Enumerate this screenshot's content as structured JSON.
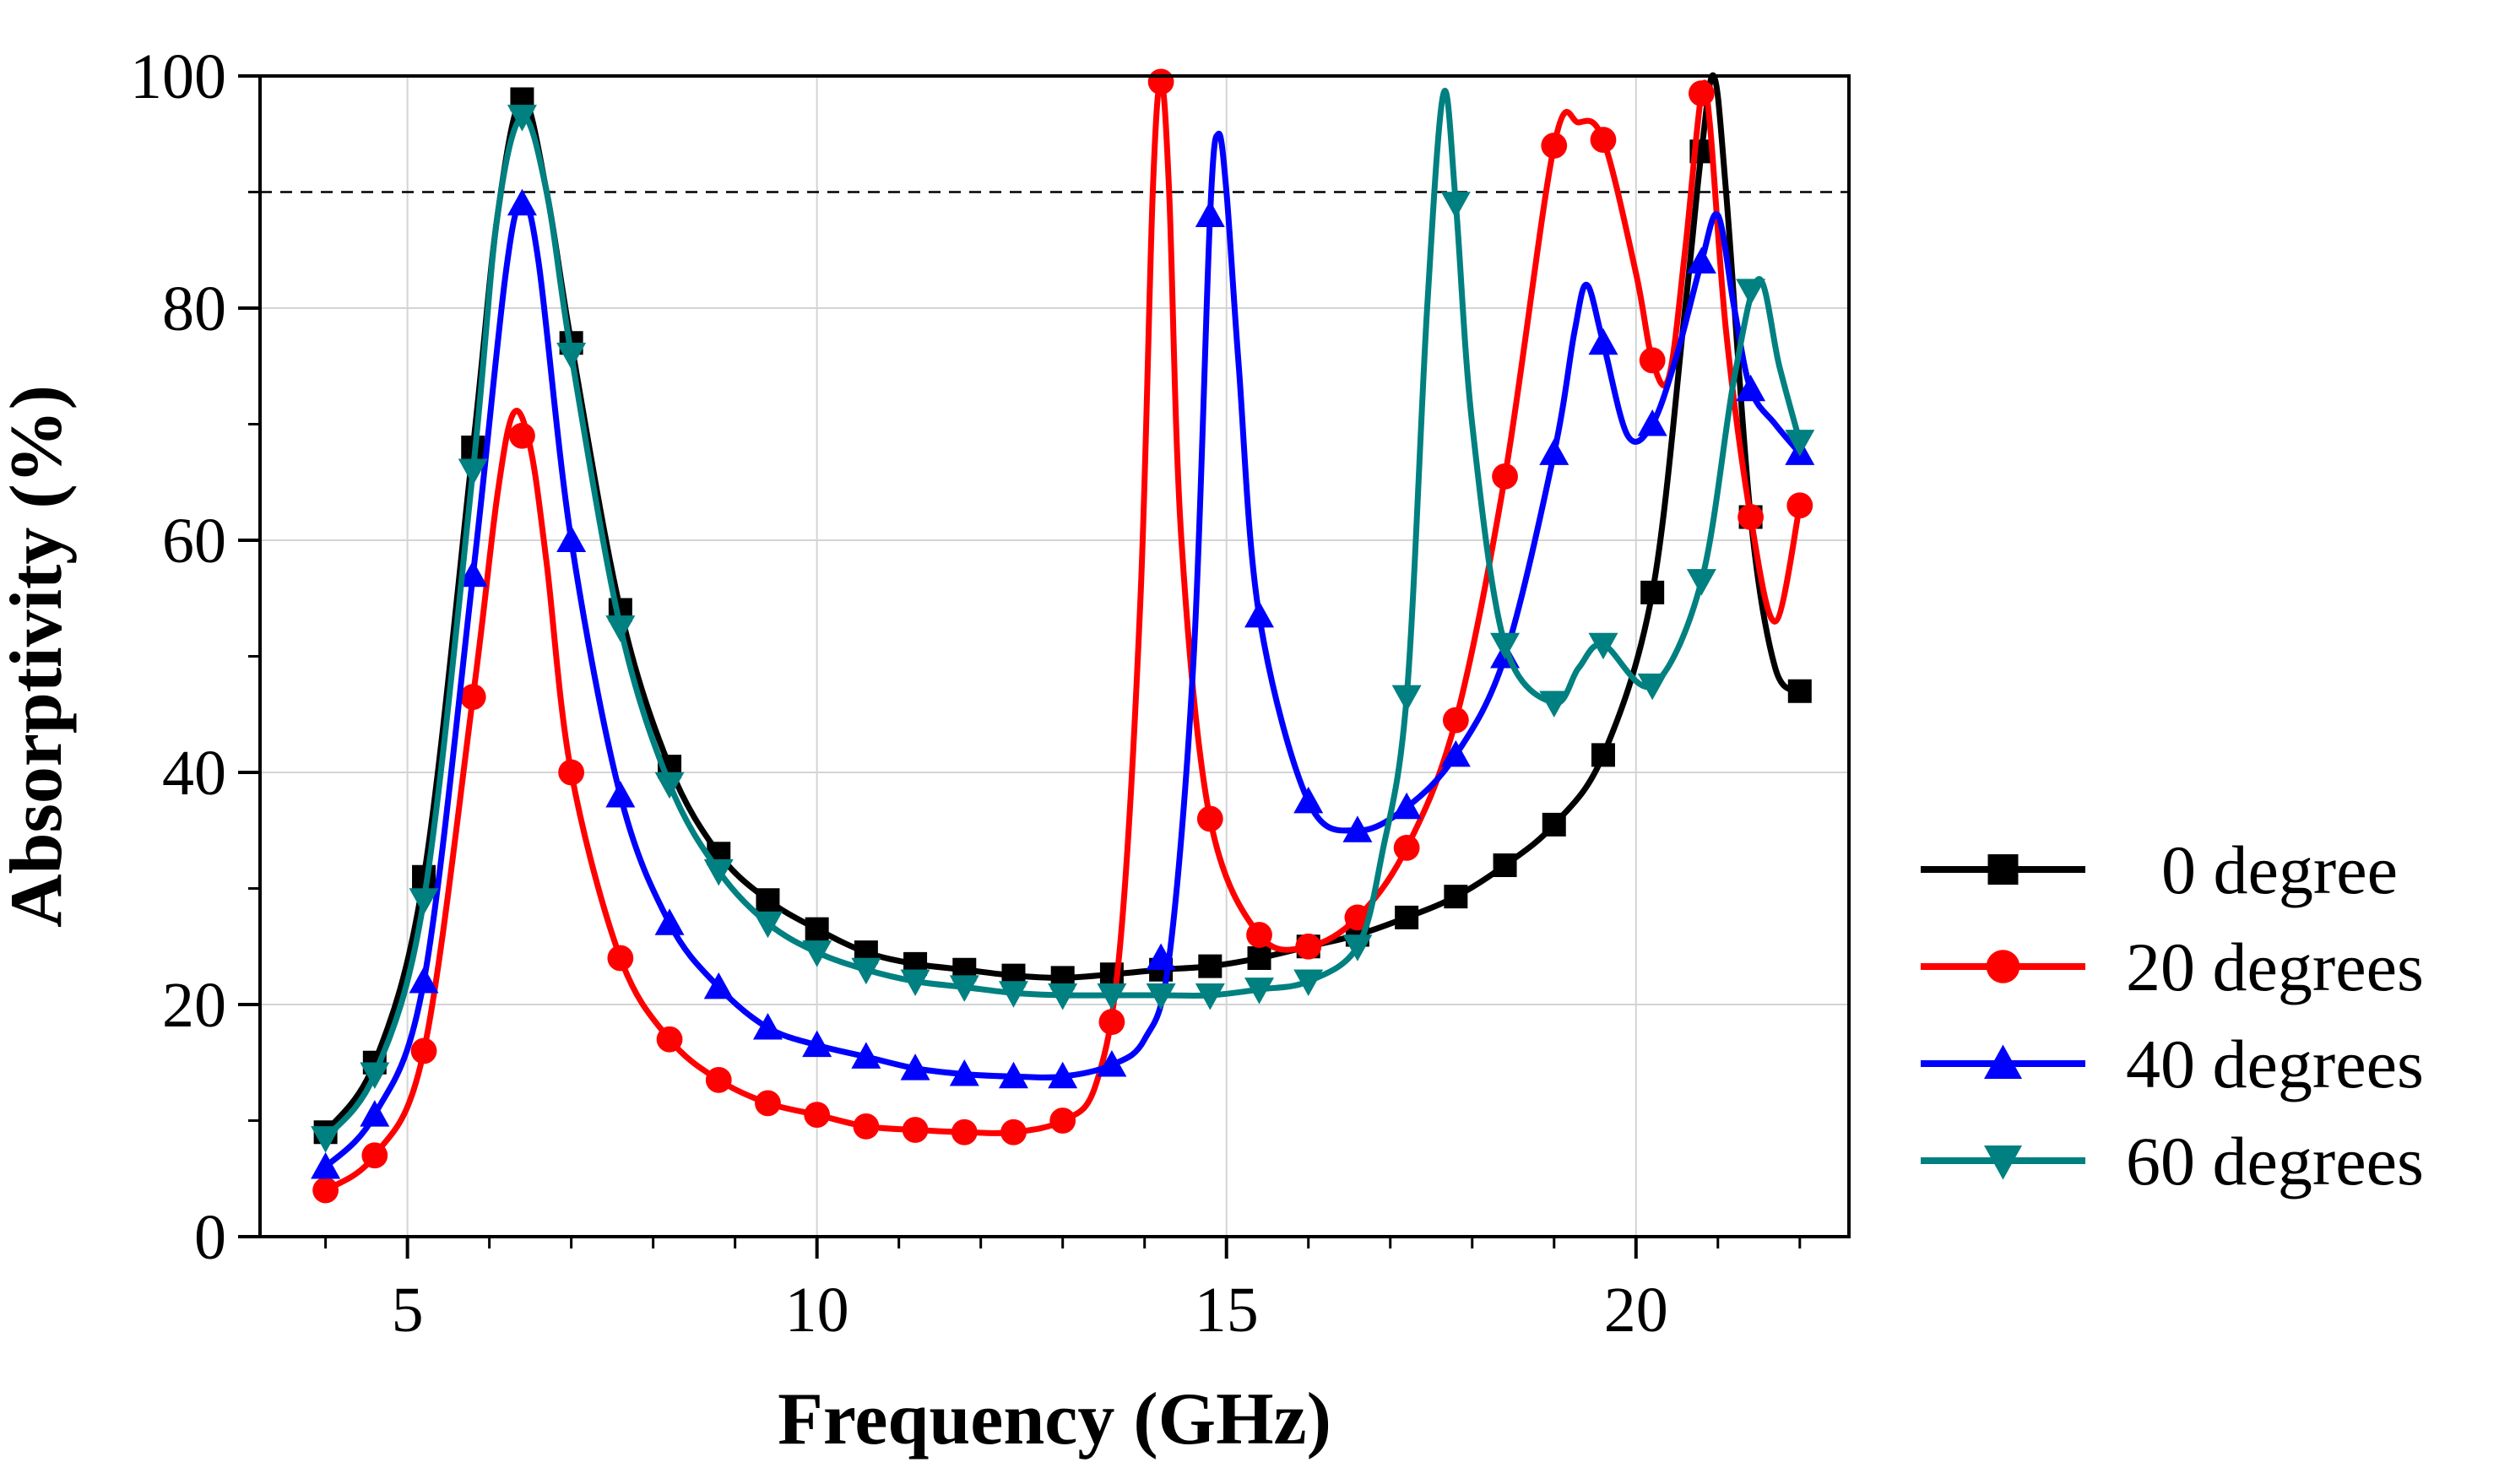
{
  "chart_data": {
    "type": "line",
    "title": "",
    "xlabel": "Frequency (GHz)",
    "ylabel": "Absorptivity (%)",
    "xlim": [
      3.2,
      22.6
    ],
    "ylim": [
      0,
      100
    ],
    "xticks": [
      5,
      10,
      15,
      20
    ],
    "yticks": [
      0,
      20,
      40,
      60,
      80,
      100
    ],
    "xtick_labels": [
      "5",
      "10",
      "15",
      "20"
    ],
    "ytick_labels": [
      "0",
      "20",
      "40",
      "60",
      "80",
      "100"
    ],
    "grid": true,
    "reference_line": {
      "y": 90,
      "style": "dashed",
      "color": "#000000"
    },
    "legend_position": "right",
    "series": [
      {
        "name": "0 degree",
        "color": "#000000",
        "marker": "square",
        "marker_x": [
          4.0,
          4.6,
          5.2,
          5.8,
          6.4,
          7.0,
          7.6,
          8.2,
          8.8,
          9.4,
          10.0,
          10.6,
          11.2,
          11.8,
          12.4,
          13.0,
          13.6,
          14.2,
          14.8,
          15.4,
          16.0,
          16.6,
          17.2,
          17.8,
          18.4,
          19.0,
          19.6,
          20.2,
          20.8,
          21.4,
          22.0
        ],
        "marker_y": [
          9,
          15,
          31,
          68,
          98,
          77,
          54,
          40.5,
          33,
          29,
          26.5,
          24.5,
          23.5,
          23,
          22.5,
          22.3,
          22.6,
          23,
          23.3,
          24,
          25,
          26,
          27.5,
          29.3,
          32,
          35.5,
          41.5,
          55.5,
          93.5,
          62,
          47
        ],
        "curve_x": [
          4.0,
          4.6,
          5.2,
          5.8,
          6.1,
          6.4,
          6.7,
          7.0,
          7.6,
          8.2,
          8.8,
          9.4,
          10.0,
          10.6,
          11.2,
          11.8,
          12.4,
          13.0,
          13.6,
          14.2,
          14.8,
          15.4,
          16.0,
          16.6,
          17.2,
          17.8,
          18.4,
          19.0,
          19.6,
          20.2,
          20.6,
          20.8,
          20.95,
          21.1,
          21.4,
          21.7,
          22.0
        ],
        "curve_y": [
          9,
          15,
          31,
          68,
          88,
          98,
          90,
          77,
          54,
          40.5,
          33,
          29,
          26.5,
          24.5,
          23.5,
          23,
          22.5,
          22.3,
          22.6,
          23,
          23.3,
          24,
          25,
          26,
          27.5,
          29.3,
          32,
          35.5,
          41.5,
          55.5,
          80,
          93.5,
          100,
          90,
          62,
          49,
          47
        ]
      },
      {
        "name": "20 degrees",
        "color": "#ff0000",
        "marker": "circle",
        "marker_x": [
          4.0,
          4.6,
          5.2,
          5.8,
          6.4,
          7.0,
          7.6,
          8.2,
          8.8,
          9.4,
          10.0,
          10.6,
          11.2,
          11.8,
          12.4,
          13.0,
          13.6,
          14.2,
          14.8,
          15.4,
          16.0,
          16.6,
          17.2,
          17.8,
          18.4,
          19.0,
          19.6,
          20.2,
          20.8,
          21.4,
          22.0
        ],
        "marker_y": [
          4,
          7,
          16,
          46.5,
          69,
          40,
          24,
          17,
          13.5,
          11.5,
          10.5,
          9.5,
          9.2,
          9,
          9,
          10,
          18.5,
          99.5,
          36,
          26,
          25,
          27.5,
          33.5,
          44.5,
          65.5,
          94,
          94.5,
          75.5,
          98.5,
          62,
          63
        ],
        "curve_x": [
          4.0,
          4.6,
          5.2,
          5.8,
          6.1,
          6.3,
          6.5,
          6.7,
          7.0,
          7.6,
          8.2,
          8.8,
          9.4,
          10.0,
          10.6,
          11.2,
          11.8,
          12.4,
          13.0,
          13.4,
          13.7,
          13.95,
          14.1,
          14.2,
          14.3,
          14.45,
          14.8,
          15.4,
          16.0,
          16.6,
          17.2,
          17.8,
          18.4,
          19.0,
          19.3,
          19.6,
          20.0,
          20.2,
          20.4,
          20.6,
          20.8,
          20.9,
          21.1,
          21.4,
          21.7,
          22.0
        ],
        "curve_y": [
          4,
          7,
          16,
          46.5,
          64,
          71,
          68,
          58,
          40,
          24,
          17,
          13.5,
          11.5,
          10.5,
          9.5,
          9.2,
          9,
          9,
          10,
          13,
          25,
          55,
          90,
          99.5,
          90,
          60,
          36,
          26,
          25,
          27.5,
          33.5,
          44.5,
          65.5,
          94,
          96,
          94.5,
          83,
          75.5,
          74,
          85,
          98.5,
          96,
          78,
          62,
          53,
          63
        ]
      },
      {
        "name": "40 degrees",
        "color": "#0000ff",
        "marker": "triangle-up",
        "marker_x": [
          4.0,
          4.6,
          5.2,
          5.8,
          6.4,
          7.0,
          7.6,
          8.2,
          8.8,
          9.4,
          10.0,
          10.6,
          11.2,
          11.8,
          12.4,
          13.0,
          13.6,
          14.2,
          14.8,
          15.4,
          16.0,
          16.6,
          17.2,
          17.8,
          18.4,
          19.0,
          19.6,
          20.2,
          20.8,
          21.4,
          22.0
        ],
        "marker_y": [
          6,
          10.5,
          22,
          57,
          89,
          60,
          38,
          27,
          21.5,
          18,
          16.5,
          15.5,
          14.5,
          14,
          13.8,
          13.8,
          14.8,
          24,
          88,
          53.5,
          37.5,
          35,
          37,
          41.5,
          50,
          67.5,
          77,
          70,
          84,
          73,
          67.5
        ],
        "curve_x": [
          4.0,
          4.6,
          5.2,
          5.8,
          6.2,
          6.4,
          6.6,
          7.0,
          7.6,
          8.2,
          8.8,
          9.4,
          10.0,
          10.6,
          11.2,
          11.8,
          12.4,
          13.0,
          13.6,
          14.0,
          14.3,
          14.6,
          14.8,
          14.9,
          15.0,
          15.15,
          15.4,
          16.0,
          16.6,
          17.2,
          17.8,
          18.4,
          19.0,
          19.25,
          19.4,
          19.6,
          19.9,
          20.2,
          20.5,
          20.8,
          21.0,
          21.2,
          21.4,
          21.7,
          22.0
        ],
        "curve_y": [
          6,
          10.5,
          22,
          57,
          83,
          89,
          84,
          60,
          38,
          27,
          21.5,
          18,
          16.5,
          15.5,
          14.5,
          14,
          13.8,
          13.8,
          14.8,
          17,
          24,
          50,
          88,
          95,
          90,
          75,
          53.5,
          37.5,
          35,
          37,
          41.5,
          50,
          67.5,
          78,
          82,
          77,
          69,
          70,
          76,
          84,
          88,
          80,
          73,
          70,
          67.5
        ]
      },
      {
        "name": "60 degrees",
        "color": "#008080",
        "marker": "triangle-down",
        "marker_x": [
          4.0,
          4.6,
          5.2,
          5.8,
          6.4,
          7.0,
          7.6,
          8.2,
          8.8,
          9.4,
          10.0,
          10.6,
          11.2,
          11.8,
          12.4,
          13.0,
          13.6,
          14.2,
          14.8,
          15.4,
          16.0,
          16.6,
          17.2,
          17.8,
          18.4,
          19.0,
          19.6,
          20.2,
          20.8,
          21.4,
          22.0
        ],
        "marker_y": [
          8.5,
          14,
          29,
          66,
          96.5,
          76,
          52.5,
          39,
          31.5,
          27,
          24.5,
          23,
          22,
          21.5,
          21,
          20.8,
          20.8,
          20.8,
          20.8,
          21.3,
          22,
          25,
          46.5,
          89,
          51,
          46,
          51,
          47.5,
          56.5,
          81.5,
          68.5
        ],
        "curve_x": [
          4.0,
          4.6,
          5.2,
          5.8,
          6.1,
          6.4,
          6.7,
          7.0,
          7.6,
          8.2,
          8.8,
          9.4,
          10.0,
          10.6,
          11.2,
          11.8,
          12.4,
          13.0,
          13.6,
          14.2,
          14.8,
          15.4,
          16.0,
          16.6,
          16.9,
          17.2,
          17.45,
          17.65,
          17.8,
          18.0,
          18.4,
          19.0,
          19.3,
          19.6,
          20.2,
          20.8,
          21.2,
          21.5,
          21.75,
          22.0
        ],
        "curve_y": [
          8.5,
          14,
          29,
          66,
          88,
          96.5,
          90,
          76,
          52.5,
          39,
          31.5,
          27,
          24.5,
          23,
          22,
          21.5,
          21,
          20.8,
          20.8,
          20.8,
          20.8,
          21.3,
          22,
          25,
          33,
          46.5,
          80,
          98.5,
          89,
          70,
          51,
          46,
          49,
          51,
          47.5,
          56.5,
          74,
          82.5,
          75,
          68.5
        ]
      }
    ]
  }
}
